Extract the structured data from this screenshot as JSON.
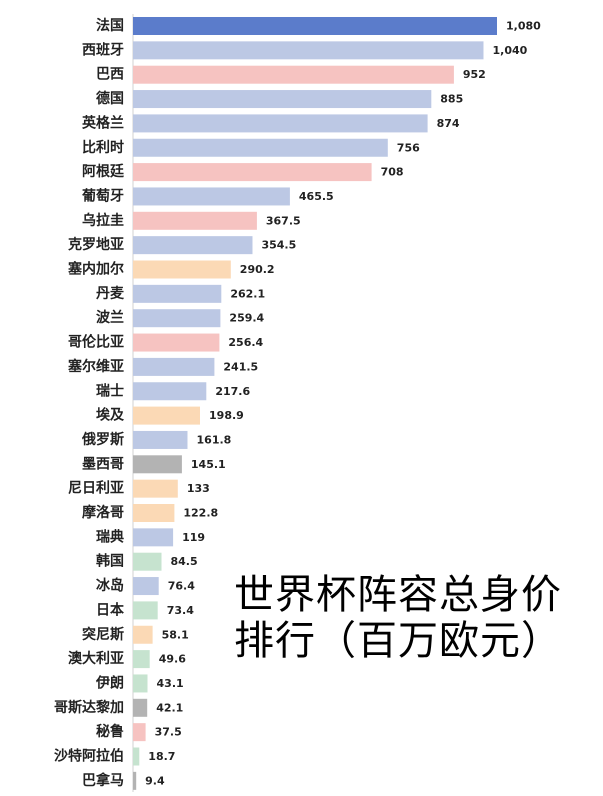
{
  "chart_data": {
    "type": "bar",
    "orientation": "horizontal",
    "title_lines": [
      "世界杯阵容总身价",
      "排行（百万欧元）"
    ],
    "categories": [
      "法国",
      "西班牙",
      "巴西",
      "德国",
      "英格兰",
      "比利时",
      "阿根廷",
      "葡萄牙",
      "乌拉圭",
      "克罗地亚",
      "塞内加尔",
      "丹麦",
      "波兰",
      "哥伦比亚",
      "塞尔维亚",
      "瑞士",
      "埃及",
      "俄罗斯",
      "墨西哥",
      "尼日利亚",
      "摩洛哥",
      "瑞典",
      "韩国",
      "冰岛",
      "日本",
      "突尼斯",
      "澳大利亚",
      "伊朗",
      "哥斯达黎加",
      "秘鲁",
      "沙特阿拉伯",
      "巴拿马"
    ],
    "values": [
      1080,
      1040,
      952,
      885,
      874,
      756,
      708,
      465.5,
      367.5,
      354.5,
      290.2,
      262.1,
      259.4,
      256.4,
      241.5,
      217.6,
      198.9,
      161.8,
      145.1,
      133,
      122.8,
      119,
      84.5,
      76.4,
      73.4,
      58.1,
      49.6,
      43.1,
      42.1,
      37.5,
      18.7,
      9.4
    ],
    "value_labels": [
      "1,080",
      "1,040",
      "952",
      "885",
      "874",
      "756",
      "708",
      "465.5",
      "367.5",
      "354.5",
      "290.2",
      "262.1",
      "259.4",
      "256.4",
      "241.5",
      "217.6",
      "198.9",
      "161.8",
      "145.1",
      "133",
      "122.8",
      "119",
      "84.5",
      "76.4",
      "73.4",
      "58.1",
      "49.6",
      "43.1",
      "42.1",
      "37.5",
      "18.7",
      "9.4"
    ],
    "bar_colors": [
      "#5b7ccb",
      "#bcc8e4",
      "#f6c3c1",
      "#bcc8e4",
      "#bcc8e4",
      "#bcc8e4",
      "#f6c3c1",
      "#bcc8e4",
      "#f6c3c1",
      "#bcc8e4",
      "#fbd9b5",
      "#bcc8e4",
      "#bcc8e4",
      "#f6c3c1",
      "#bcc8e4",
      "#bcc8e4",
      "#fbd9b5",
      "#bcc8e4",
      "#b3b3b3",
      "#fbd9b5",
      "#fbd9b5",
      "#bcc8e4",
      "#c6e3cf",
      "#bcc8e4",
      "#c6e3cf",
      "#fbd9b5",
      "#c6e3cf",
      "#c6e3cf",
      "#b3b3b3",
      "#f6c3c1",
      "#c6e3cf",
      "#b3b3b3"
    ],
    "xlim": [
      0,
      1080
    ],
    "grid": false,
    "legend": "none"
  }
}
